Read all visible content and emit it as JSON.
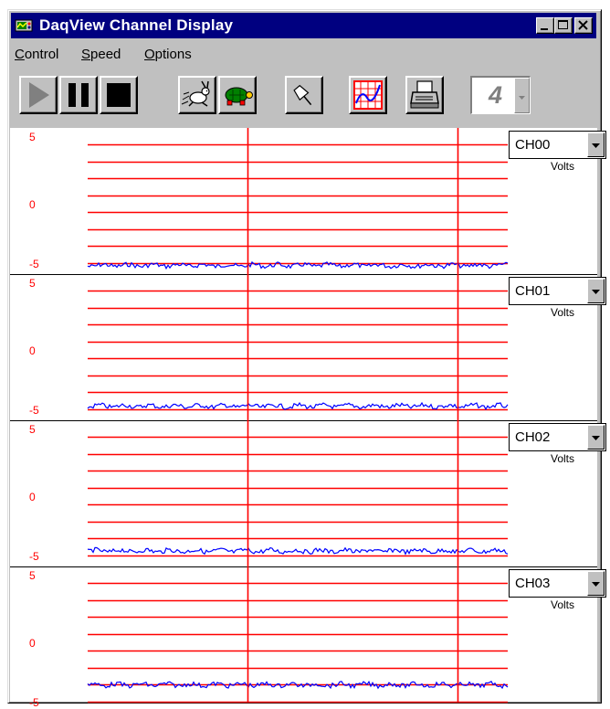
{
  "window": {
    "title": "DaqView Channel Display",
    "app_icon": "daqview-app-icon",
    "controls": [
      "minimize-icon",
      "maximize-icon",
      "close-icon"
    ]
  },
  "menu": {
    "items": [
      {
        "label": "Control",
        "accel": "C",
        "rest": "ontrol"
      },
      {
        "label": "Speed",
        "accel": "S",
        "rest": "peed"
      },
      {
        "label": "Options",
        "accel": "O",
        "rest": "ptions"
      }
    ]
  },
  "toolbar": {
    "buttons": [
      "play-icon",
      "pause-icon",
      "stop-icon",
      "rabbit-fast-icon",
      "turtle-slow-icon",
      "pushpin-icon",
      "chart-graph-icon",
      "printer-icon"
    ],
    "rate_value": "4"
  },
  "colors": {
    "titlebar": "#000080",
    "face": "#c0c0c0",
    "grid": "#ff0000",
    "trace": "#0000ff"
  },
  "channels": [
    {
      "name": "CH00",
      "units": "Volts",
      "ymax": "5",
      "ymid": "0",
      "ymin": "-5",
      "level": -4.7
    },
    {
      "name": "CH01",
      "units": "Volts",
      "ymax": "5",
      "ymid": "0",
      "ymin": "-5",
      "level": -4.3
    },
    {
      "name": "CH02",
      "units": "Volts",
      "ymax": "5",
      "ymid": "0",
      "ymin": "-5",
      "level": -4.2
    },
    {
      "name": "CH03",
      "units": "Volts",
      "ymax": "5",
      "ymid": "0",
      "ymin": "-5",
      "level": -3.3
    }
  ]
}
